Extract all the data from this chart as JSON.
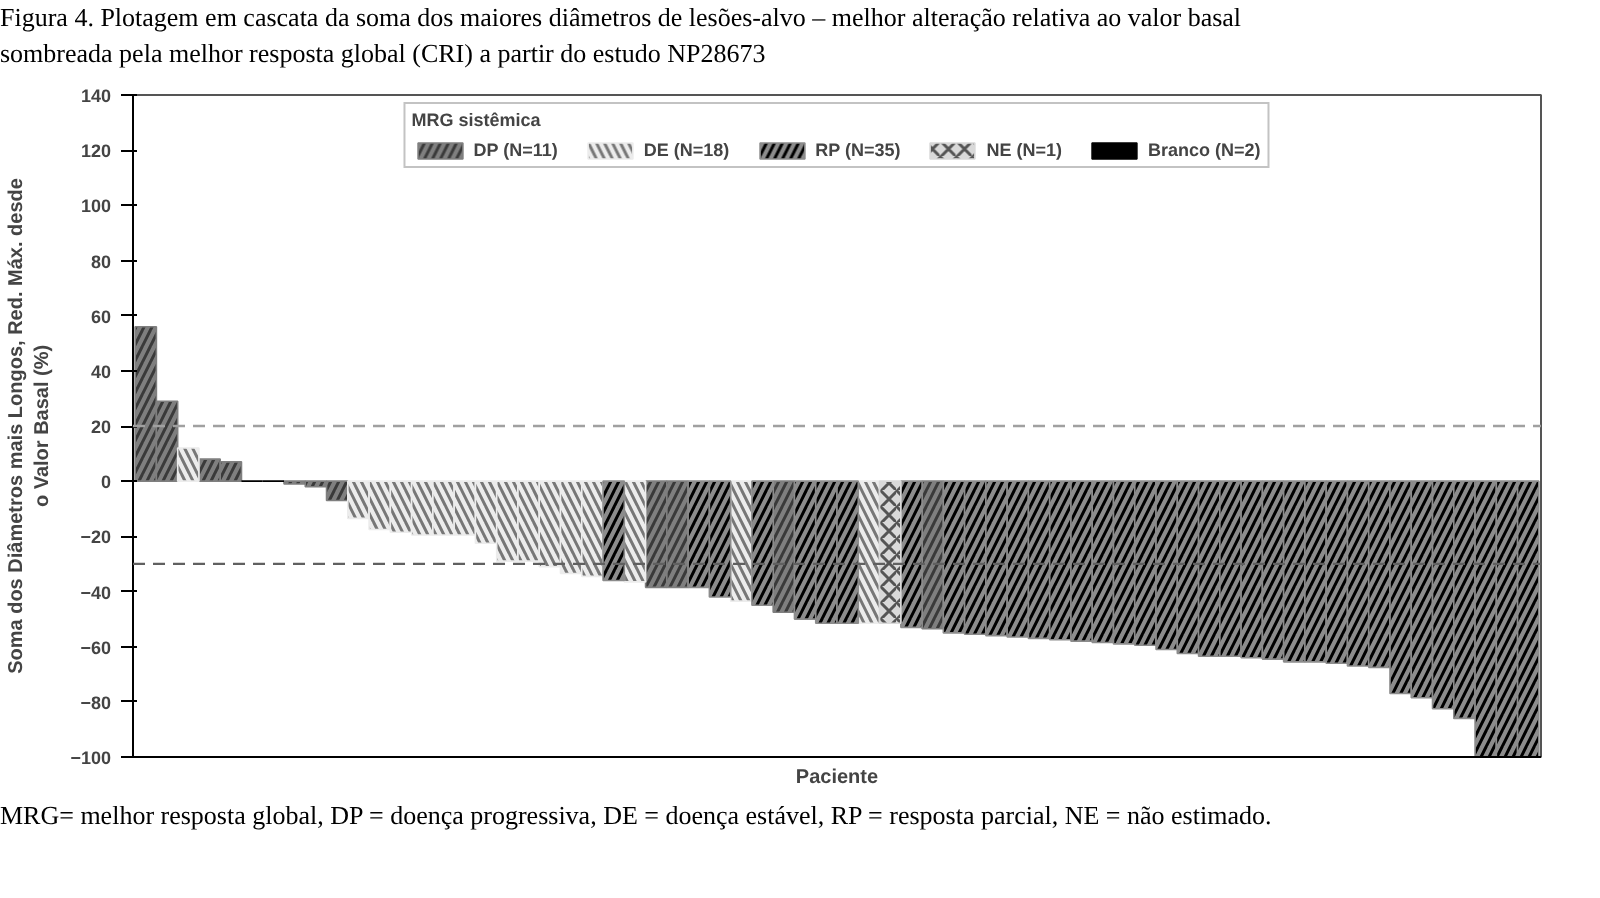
{
  "chart_data": {
    "type": "bar",
    "title": "Figura 4. Plotagem em cascata da soma dos maiores diâmetros de lesões-alvo – melhor alteração relativa ao valor basal\nsombreada pela melhor resposta global (CRI) a partir do estudo NP28673",
    "xlabel": "Paciente",
    "ylabel": "Soma dos Diâmetros mais Longos, Red. Máx. desde\no Valor Basal (%)",
    "legend_title": "MRG sistêmica",
    "legend": "top",
    "tick_labels": "y",
    "grid": false,
    "categories": [
      null,
      null,
      null,
      null,
      null,
      null,
      null,
      null,
      null,
      null,
      null,
      null,
      null,
      null,
      null,
      null,
      null,
      null,
      null,
      null,
      null,
      null,
      null,
      null,
      null,
      null,
      null,
      null,
      null,
      null,
      null,
      null,
      null,
      null,
      null,
      null,
      null,
      null,
      null,
      null,
      null,
      null,
      null,
      null,
      null,
      null,
      null,
      null,
      null,
      null,
      null,
      null,
      null,
      null,
      null,
      null,
      null,
      null,
      null,
      null,
      null,
      null,
      null,
      null,
      null,
      null
    ],
    "ylim": [
      -100,
      140
    ],
    "yticks": [
      -100,
      -80,
      -60,
      -40,
      -20,
      0,
      20,
      40,
      60,
      80,
      100,
      120,
      140
    ],
    "series": [
      {
        "name": "DP (N=11)",
        "color": "#7f7f7f",
        "values": [
          56,
          29,
          null,
          8,
          7,
          null,
          null,
          -1,
          -2,
          -7,
          null,
          null,
          null,
          null,
          null,
          null,
          null,
          null,
          null,
          null,
          null,
          null,
          null,
          null,
          -38.5,
          -38.5,
          null,
          null,
          null,
          null,
          -47.5,
          null,
          null,
          null,
          null,
          null,
          null,
          -53.5,
          null,
          null,
          null,
          null,
          null,
          null,
          null,
          null,
          null,
          null,
          null,
          null,
          null,
          null,
          null,
          null,
          null,
          null,
          null,
          null,
          null,
          null,
          null,
          null,
          null,
          null,
          null,
          null
        ]
      },
      {
        "name": "DE (N=18)",
        "color": "#ececec",
        "values": [
          null,
          null,
          12,
          null,
          null,
          null,
          null,
          null,
          null,
          null,
          -13.5,
          -17.5,
          -18.5,
          -19.5,
          -19.5,
          -19.5,
          -22.5,
          -29,
          -29,
          -31,
          -33.5,
          -34.5,
          null,
          -36.5,
          null,
          null,
          null,
          null,
          -43.5,
          null,
          null,
          null,
          null,
          null,
          -51.5,
          null,
          null,
          null,
          null,
          null,
          null,
          null,
          null,
          null,
          null,
          null,
          null,
          null,
          null,
          null,
          null,
          null,
          null,
          null,
          null,
          null,
          null,
          null,
          null,
          null,
          null,
          null,
          null,
          null,
          null,
          null
        ]
      },
      {
        "name": "RP (N=35)",
        "color": "#8c8c8c",
        "values": [
          null,
          null,
          null,
          null,
          null,
          null,
          null,
          null,
          null,
          null,
          null,
          null,
          null,
          null,
          null,
          null,
          null,
          null,
          null,
          null,
          null,
          null,
          -36,
          null,
          null,
          null,
          -38.5,
          -42,
          null,
          -45,
          null,
          -50,
          -51.5,
          -51.5,
          null,
          null,
          -53,
          null,
          -55,
          -55.5,
          -56,
          -56.5,
          -57,
          -57.5,
          -58,
          -58.5,
          -59,
          -59.5,
          -61,
          -62.5,
          -63.5,
          -63.5,
          -64,
          -64.5,
          -65.5,
          -65.5,
          -66,
          -67,
          -67.5,
          -77,
          -78.5,
          -82.5,
          -86,
          -100,
          -100,
          -100
        ]
      },
      {
        "name": "NE (N=1)",
        "color": "#d9d9d9",
        "values": [
          null,
          null,
          null,
          null,
          null,
          null,
          null,
          null,
          null,
          null,
          null,
          null,
          null,
          null,
          null,
          null,
          null,
          null,
          null,
          null,
          null,
          null,
          null,
          null,
          null,
          null,
          null,
          null,
          null,
          null,
          null,
          null,
          null,
          null,
          null,
          -51.5,
          null,
          null,
          null,
          null,
          null,
          null,
          null,
          null,
          null,
          null,
          null,
          null,
          null,
          null,
          null,
          null,
          null,
          null,
          null,
          null,
          null,
          null,
          null,
          null,
          null,
          null,
          null,
          null,
          null,
          null
        ]
      },
      {
        "name": "Branco (N=2)",
        "color": "#000000",
        "values": [
          null,
          null,
          null,
          null,
          null,
          0,
          0,
          null,
          null,
          null,
          null,
          null,
          null,
          null,
          null,
          null,
          null,
          null,
          null,
          null,
          null,
          null,
          null,
          null,
          null,
          null,
          null,
          null,
          null,
          null,
          null,
          null,
          null,
          null,
          null,
          null,
          null,
          null,
          null,
          null,
          null,
          null,
          null,
          null,
          null,
          null,
          null,
          null,
          null,
          null,
          null,
          null,
          null,
          null,
          null,
          null,
          null,
          null,
          null,
          null,
          null,
          null,
          null,
          null,
          null,
          null
        ]
      }
    ],
    "ref_lines": [
      {
        "axis": "y",
        "value": 20,
        "label": null,
        "color": "#a0a0a0",
        "line_style": "dashed"
      },
      {
        "axis": "y",
        "value": -30,
        "label": null,
        "color": "#606060",
        "line_style": "dashed"
      }
    ],
    "annotations": [
      "MRG= melhor resposta global, DP = doença progressiva, DE = doença estável, RP = resposta parcial, NE = não estimado."
    ]
  }
}
